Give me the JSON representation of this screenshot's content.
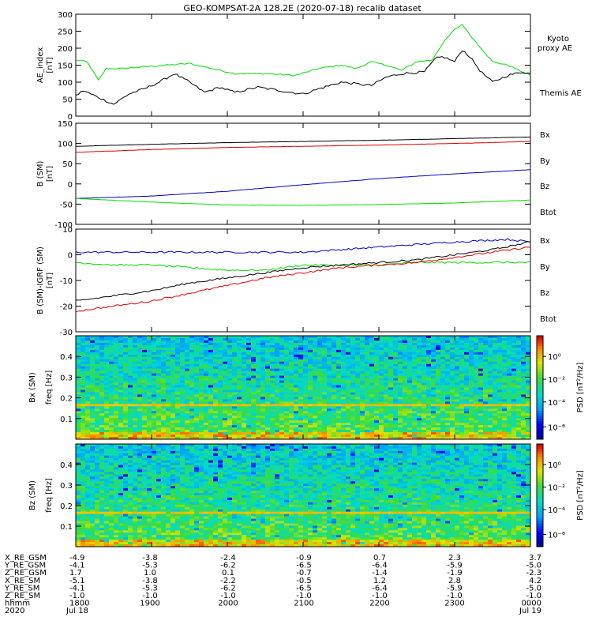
{
  "title": "GEO-KOMPSAT-2A 128.2E (2020-07-18) recalib dataset",
  "colors": {
    "black": "#000000",
    "red": "#e00000",
    "green": "#00dd00",
    "blue": "#0000cc"
  },
  "chart_data": [
    {
      "type": "line",
      "ylabel": "AE_index [nT]",
      "ylim": [
        0,
        300
      ],
      "yticks": [
        0,
        50,
        100,
        150,
        200,
        250,
        300
      ],
      "x_hours": [
        18,
        24
      ],
      "series": [
        {
          "name": "Kyoto proxy AE",
          "color": "green",
          "x": [
            18.0,
            18.15,
            18.3,
            18.4,
            18.6,
            18.9,
            19.2,
            19.5,
            19.8,
            20.1,
            20.5,
            20.9,
            21.2,
            21.5,
            21.7,
            21.9,
            22.1,
            22.3,
            22.5,
            22.7,
            22.8,
            22.9,
            23.0,
            23.1,
            23.2,
            23.35,
            23.5,
            23.7,
            23.9,
            24.0
          ],
          "y": [
            165,
            160,
            105,
            140,
            140,
            145,
            150,
            155,
            140,
            125,
            125,
            120,
            140,
            150,
            140,
            160,
            150,
            135,
            160,
            165,
            200,
            230,
            255,
            270,
            240,
            200,
            160,
            150,
            130,
            120
          ]
        },
        {
          "name": "Themis AE",
          "color": "black",
          "x": [
            18.0,
            18.1,
            18.3,
            18.5,
            18.7,
            18.9,
            19.1,
            19.3,
            19.5,
            19.7,
            19.9,
            20.1,
            20.4,
            20.7,
            21.0,
            21.2,
            21.5,
            21.7,
            21.9,
            22.1,
            22.3,
            22.6,
            22.75,
            22.85,
            23.0,
            23.1,
            23.2,
            23.35,
            23.5,
            23.7,
            23.9,
            24.0
          ],
          "y": [
            60,
            75,
            55,
            35,
            65,
            80,
            100,
            125,
            100,
            70,
            85,
            70,
            85,
            75,
            65,
            80,
            100,
            95,
            90,
            115,
            125,
            130,
            170,
            175,
            160,
            195,
            175,
            130,
            100,
            120,
            130,
            125
          ]
        }
      ],
      "labels": [
        "Kyoto proxy AE",
        "Themis AE"
      ]
    },
    {
      "type": "line",
      "ylabel": "B (SM) [nT]",
      "ylim": [
        -100,
        150
      ],
      "yticks": [
        -100,
        -50,
        0,
        50,
        100,
        150
      ],
      "series": [
        {
          "name": "Btot",
          "color": "black",
          "x": [
            18,
            19,
            20,
            21,
            22,
            23,
            24
          ],
          "y": [
            93,
            98,
            102,
            105,
            108,
            112,
            116
          ]
        },
        {
          "name": "Bz",
          "color": "red",
          "x": [
            18,
            19,
            20,
            21,
            22,
            23,
            24
          ],
          "y": [
            78,
            85,
            90,
            93,
            96,
            100,
            105
          ]
        },
        {
          "name": "Bx",
          "color": "blue",
          "x": [
            18,
            19,
            20,
            21,
            22,
            23,
            24
          ],
          "y": [
            -36,
            -30,
            -18,
            -2,
            13,
            25,
            35
          ]
        },
        {
          "name": "By",
          "color": "green",
          "x": [
            18,
            19,
            20,
            21,
            22,
            23,
            24
          ],
          "y": [
            -36,
            -45,
            -52,
            -53,
            -51,
            -47,
            -40
          ]
        }
      ],
      "labels": [
        "Bx",
        "By",
        "Bz",
        "Btot"
      ]
    },
    {
      "type": "line",
      "ylabel": "B (SM)-IGRF (SM) [nT]",
      "ylim": [
        -30,
        10
      ],
      "yticks": [
        -30,
        -20,
        -10,
        0,
        10
      ],
      "series": [
        {
          "name": "Bx",
          "color": "blue",
          "x": [
            18,
            19,
            20,
            21,
            22,
            23,
            23.7,
            24
          ],
          "y": [
            1,
            1,
            1,
            1,
            3,
            5,
            6,
            5
          ]
        },
        {
          "name": "By",
          "color": "green",
          "x": [
            18,
            18.5,
            19,
            19.5,
            20,
            20.5,
            21,
            21.5,
            22,
            22.5,
            23,
            23.5,
            24
          ],
          "y": [
            -3,
            -4,
            -4,
            -5,
            -6,
            -6,
            -4,
            -4,
            -4,
            -3,
            -3,
            -3,
            -3
          ]
        },
        {
          "name": "Btot",
          "color": "black",
          "x": [
            18,
            18.5,
            19,
            19.5,
            20,
            20.5,
            21,
            21.5,
            22,
            22.5,
            23,
            23.5,
            24
          ],
          "y": [
            -18,
            -16,
            -14,
            -11,
            -9,
            -7,
            -5,
            -4,
            -3,
            -2,
            0,
            2,
            5
          ]
        },
        {
          "name": "Bz",
          "color": "red",
          "x": [
            18,
            18.5,
            19,
            19.5,
            20,
            20.5,
            21,
            21.5,
            22,
            22.5,
            23,
            23.5,
            24
          ],
          "y": [
            -22,
            -20,
            -18,
            -15,
            -12,
            -9,
            -7,
            -5,
            -4,
            -3,
            -1,
            1,
            3
          ]
        }
      ],
      "labels": [
        "Bx",
        "By",
        "Bz",
        "Btot"
      ]
    },
    {
      "type": "heatmap",
      "ylabel": "Bx (SM) freq [Hz]",
      "ylim": [
        0,
        0.5
      ],
      "yticks": [
        "0.1",
        "0.2",
        "0.3",
        "0.4"
      ],
      "colorbar": {
        "label": "PSD [nT²/Hz]",
        "ticks": [
          "10⁰",
          "10⁻²",
          "10⁻⁴",
          "10⁻⁶"
        ]
      }
    },
    {
      "type": "heatmap",
      "ylabel": "Bz (SM) freq [Hz]",
      "ylim": [
        0,
        0.5
      ],
      "yticks": [
        "0.1",
        "0.2",
        "0.3",
        "0.4"
      ],
      "colorbar": {
        "label": "PSD [nT²/Hz]",
        "ticks": [
          "10⁰",
          "10⁻²",
          "10⁻⁴",
          "10⁻⁶"
        ]
      }
    }
  ],
  "ephemeris": {
    "rows": [
      {
        "label": "X_RE_GSM",
        "values": [
          "-4.9",
          "-3.8",
          "-2.4",
          "-0.9",
          "0.7",
          "2.3",
          "3.7"
        ]
      },
      {
        "label": "Y_RE_GSM",
        "values": [
          "-4.1",
          "-5.3",
          "-6.2",
          "-6.5",
          "-6.4",
          "-5.9",
          "-5.0"
        ]
      },
      {
        "label": "Z_RE_GSM",
        "values": [
          "1.7",
          "1.0",
          "0.1",
          "-0.7",
          "-1.4",
          "-1.9",
          "-2.3"
        ]
      },
      {
        "label": "X_RE_SM",
        "values": [
          "-5.1",
          "-3.8",
          "-2.2",
          "-0.5",
          "1.2",
          "2.8",
          "4.2"
        ]
      },
      {
        "label": "Y_RE_SM",
        "values": [
          "-4.1",
          "-5.3",
          "-6.2",
          "-6.5",
          "-6.4",
          "-5.9",
          "-5.0"
        ]
      },
      {
        "label": "Z_RE_SM",
        "values": [
          "-1.0",
          "-1.0",
          "-1.0",
          "-1.0",
          "-1.0",
          "-1.0",
          "-1.0"
        ]
      },
      {
        "label": "hhmm",
        "values": [
          "1800",
          "1900",
          "2000",
          "2100",
          "2200",
          "2300",
          "0000"
        ]
      }
    ],
    "date_row": {
      "label": "2020",
      "start": "Jul 18",
      "end": "Jul 19"
    }
  }
}
